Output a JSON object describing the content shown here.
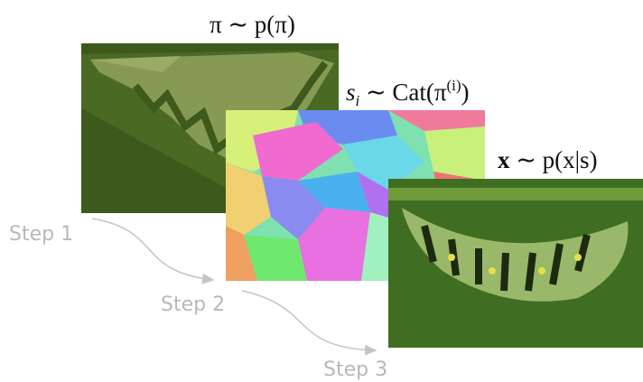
{
  "labels": [
    {
      "parts": [
        "π ∼ p(π)"
      ]
    },
    {
      "parts": [
        "s",
        "i",
        " ∼ Cat(π",
        "(i)",
        ")"
      ]
    },
    {
      "parts": [
        "x",
        " ∼ p(x|s)"
      ]
    }
  ],
  "steps": [
    "Step 1",
    "Step 2",
    "Step 3"
  ]
}
